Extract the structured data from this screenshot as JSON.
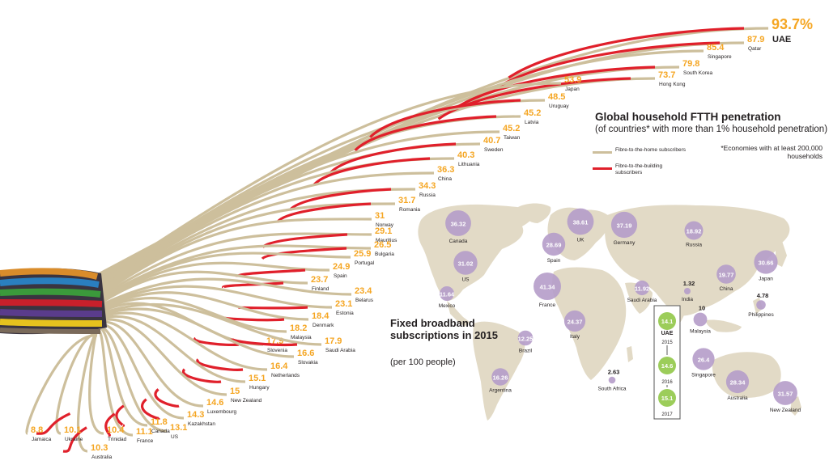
{
  "chart_data": [
    {
      "type": "bar",
      "title": "Global household FTTH penetration",
      "subtitle": "(of countries* with more than 1% household penetration)",
      "note": "*Economies with at least 200,000 households",
      "legend": [
        "Fibre-to-the-home subscribers",
        "Fibre-to-the-building subscribers"
      ],
      "legend_placement": "top-right",
      "colors": {
        "ftth": "#cdbf9c",
        "fttb": "#e0202b",
        "value": "#f5a623"
      },
      "unit": "%",
      "categories": [
        "UAE",
        "Qatar",
        "Singapore",
        "South Korea",
        "Hong Kong",
        "Japan",
        "Uruguay",
        "Latvia",
        "Taiwan",
        "Sweden",
        "Lithuania",
        "China",
        "Russia",
        "Romania",
        "Norway",
        "Mauritius",
        "Bulgaria",
        "Portugal",
        "Spain",
        "Finland",
        "Belarus",
        "Estonia",
        "Denmark",
        "Malaysia",
        "Slovenia",
        "Saudi Arabia",
        "Slovakia",
        "Netherlands",
        "Hungary",
        "New Zealand",
        "Luxembourg",
        "Kazakhstan",
        "US",
        "Canada",
        "France",
        "Trinidad",
        "Australia",
        "Ukraine",
        "Jamaica"
      ],
      "labels": [
        "93.7%",
        "87.9",
        "85.4",
        "79.8",
        "73.7",
        "53.9",
        "48.5",
        "45.2",
        "45.2",
        "40.7",
        "40.3",
        "36.3",
        "34.3",
        "31.7",
        "31",
        "29.1",
        "26.5",
        "25.9",
        "24.9",
        "23.7",
        "23.4",
        "23.1",
        "18.4",
        "18.2",
        "17.9",
        "17.9",
        "16.6",
        "16.4",
        "15.1",
        "15",
        "14.6",
        "14.3",
        "13.1",
        "11.8",
        "11.1",
        "10.4",
        "10.3",
        "10.1",
        "8.8"
      ],
      "values": [
        93.7,
        87.9,
        85.4,
        79.8,
        73.7,
        53.9,
        48.5,
        45.2,
        45.2,
        40.7,
        40.3,
        36.3,
        34.3,
        31.7,
        31,
        29.1,
        26.5,
        25.9,
        24.9,
        23.7,
        23.4,
        23.1,
        18.4,
        18.2,
        17.9,
        17.9,
        16.6,
        16.4,
        15.1,
        15,
        14.6,
        14.3,
        13.1,
        11.8,
        11.1,
        10.4,
        10.3,
        10.1,
        8.8
      ]
    },
    {
      "type": "scatter",
      "title": "Fixed broadband subscriptions in 2015",
      "subtitle": "(per 100 people)",
      "points": [
        {
          "country": "Canada",
          "value": 36.32
        },
        {
          "country": "US",
          "value": 31.02
        },
        {
          "country": "Mexico",
          "value": 11.64
        },
        {
          "country": "UK",
          "value": 38.61
        },
        {
          "country": "Germany",
          "value": 37.19
        },
        {
          "country": "Spain",
          "value": 28.69
        },
        {
          "country": "France",
          "value": 41.34
        },
        {
          "country": "Italy",
          "value": 24.37
        },
        {
          "country": "Russia",
          "value": 18.92
        },
        {
          "country": "China",
          "value": 19.77
        },
        {
          "country": "Japan",
          "value": 30.66
        },
        {
          "country": "Saudi Arabia",
          "value": 11.92
        },
        {
          "country": "India",
          "value": 1.32
        },
        {
          "country": "Philippines",
          "value": 4.78
        },
        {
          "country": "Malaysia",
          "value": 10
        },
        {
          "country": "Singapore",
          "value": 26.4
        },
        {
          "country": "Australia",
          "value": 28.34
        },
        {
          "country": "New Zealand",
          "value": 31.57
        },
        {
          "country": "Brazil",
          "value": 12.25
        },
        {
          "country": "Argentina",
          "value": 16.26
        },
        {
          "country": "South Africa",
          "value": 2.63
        }
      ],
      "uae_inset": {
        "label": "UAE",
        "points": [
          {
            "year": "2015",
            "value": 14.1
          },
          {
            "year": "2016",
            "value": 14.6
          },
          {
            "year": "2017",
            "value": 15.1
          }
        ]
      },
      "colors": {
        "bubble": "#b59cc9",
        "uae_bubble": "#9ccd5a",
        "land": "#e0d8c3"
      }
    }
  ]
}
